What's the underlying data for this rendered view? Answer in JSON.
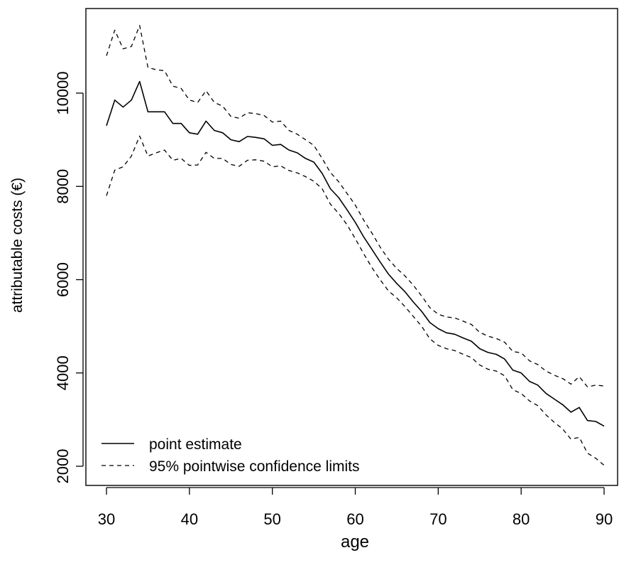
{
  "chart_data": {
    "type": "line",
    "xlabel": "age",
    "ylabel": "attributable costs (€)",
    "xlim": [
      30,
      90
    ],
    "ylim": [
      2000,
      11500
    ],
    "x_ticks": [
      30,
      40,
      50,
      60,
      70,
      80,
      90
    ],
    "x_tick_labels": [
      "30",
      "40",
      "50",
      "60",
      "70",
      "80",
      "90"
    ],
    "y_ticks": [
      2000,
      4000,
      6000,
      8000,
      10000
    ],
    "y_tick_labels": [
      "2000",
      "4000",
      "6000",
      "8000",
      "10000"
    ],
    "grid": false,
    "legend_position": "bottom-left",
    "x": [
      30,
      31,
      32,
      33,
      34,
      35,
      36,
      37,
      38,
      39,
      40,
      41,
      42,
      43,
      44,
      45,
      46,
      47,
      48,
      49,
      50,
      51,
      52,
      53,
      54,
      55,
      56,
      57,
      58,
      59,
      60,
      61,
      62,
      63,
      64,
      65,
      66,
      67,
      68,
      69,
      70,
      71,
      72,
      73,
      74,
      75,
      76,
      77,
      78,
      79,
      80,
      81,
      82,
      83,
      84,
      85,
      86,
      87,
      88,
      89,
      90
    ],
    "series": [
      {
        "name": "point estimate",
        "style": "solid",
        "values": [
          9300,
          9850,
          9700,
          9850,
          10250,
          9600,
          9600,
          9600,
          9350,
          9350,
          9150,
          9120,
          9400,
          9200,
          9150,
          9000,
          8960,
          9070,
          9050,
          9020,
          8880,
          8900,
          8780,
          8720,
          8600,
          8520,
          8280,
          7950,
          7760,
          7500,
          7230,
          6920,
          6650,
          6380,
          6120,
          5920,
          5740,
          5520,
          5320,
          5080,
          4950,
          4860,
          4830,
          4750,
          4680,
          4520,
          4440,
          4400,
          4300,
          4060,
          4000,
          3820,
          3740,
          3560,
          3440,
          3320,
          3160,
          3260,
          2980,
          2960,
          2860
        ]
      },
      {
        "name": "95% pointwise confidence limits",
        "style": "dashed",
        "values": [
          10800,
          11350,
          10950,
          11000,
          11450,
          10550,
          10500,
          10480,
          10150,
          10100,
          9850,
          9800,
          10050,
          9800,
          9720,
          9500,
          9460,
          9580,
          9560,
          9520,
          9380,
          9400,
          9200,
          9120,
          9000,
          8880,
          8600,
          8300,
          8100,
          7850,
          7600,
          7280,
          7000,
          6700,
          6440,
          6240,
          6080,
          5880,
          5650,
          5400,
          5260,
          5200,
          5180,
          5110,
          5040,
          4870,
          4790,
          4740,
          4660,
          4460,
          4430,
          4260,
          4180,
          4040,
          3950,
          3880,
          3760,
          3920,
          3700,
          3740,
          3720
        ]
      },
      {
        "name": "",
        "style": "dashed",
        "values": [
          7800,
          8350,
          8420,
          8650,
          9080,
          8650,
          8720,
          8780,
          8560,
          8600,
          8450,
          8460,
          8730,
          8600,
          8600,
          8470,
          8430,
          8560,
          8570,
          8540,
          8420,
          8440,
          8340,
          8290,
          8210,
          8110,
          7950,
          7620,
          7420,
          7180,
          6880,
          6560,
          6260,
          6000,
          5760,
          5610,
          5420,
          5210,
          5000,
          4730,
          4590,
          4520,
          4480,
          4400,
          4330,
          4170,
          4080,
          4040,
          3940,
          3640,
          3560,
          3400,
          3300,
          3100,
          2940,
          2800,
          2580,
          2620,
          2280,
          2170,
          2020
        ]
      }
    ]
  }
}
